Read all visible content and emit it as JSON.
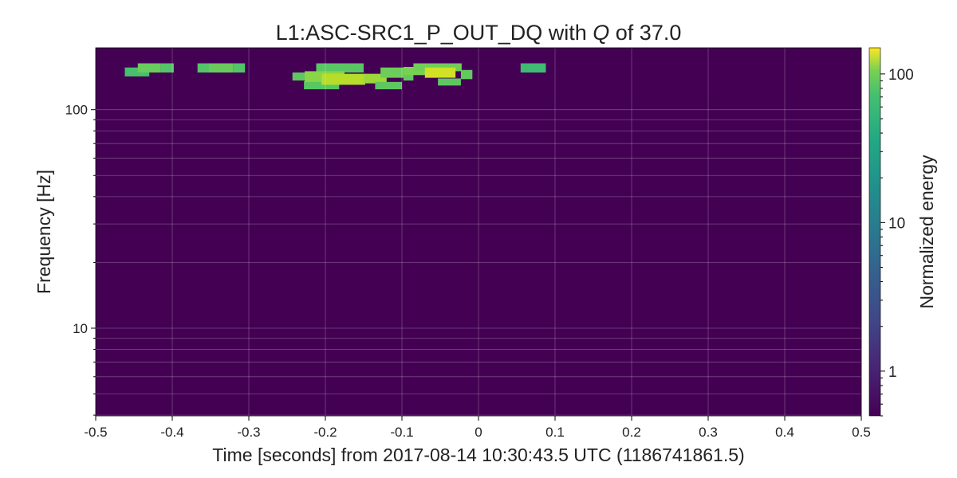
{
  "chart_data": {
    "type": "heatmap",
    "title": {
      "prefix": "L1:ASC-SRC1_P_OUT_DQ with ",
      "italic": "Q",
      "suffix": " of 37.0"
    },
    "xlabel": "Time [seconds] from 2017-08-14 10:30:43.5 UTC (1186741861.5)",
    "ylabel": "Frequency [Hz]",
    "xlim": [
      -0.5,
      0.5
    ],
    "ylim": [
      3.97,
      192
    ],
    "yscale": "log",
    "xticks": [
      -0.5,
      -0.4,
      -0.3,
      -0.2,
      -0.1,
      0,
      0.1,
      0.2,
      0.3,
      0.4,
      0.5
    ],
    "xtick_labels": [
      "-0.5",
      "-0.4",
      "-0.3",
      "-0.2",
      "-0.1",
      "0",
      "0.1",
      "0.2",
      "0.3",
      "0.4",
      "0.5"
    ],
    "yticks": [
      10,
      100
    ],
    "ytick_labels": [
      "10",
      "100"
    ],
    "grid": true,
    "colormap": "viridis",
    "background_color": "#440154",
    "colorbar": {
      "label": "Normalized energy",
      "scale": "log",
      "range": [
        0.5,
        150
      ],
      "ticks": [
        1,
        10,
        100
      ],
      "tick_labels": [
        "1",
        "10",
        "100"
      ]
    },
    "tiles": [
      {
        "x0": -0.462,
        "x1": -0.43,
        "f0": 142,
        "f1": 156,
        "value": 28
      },
      {
        "x0": -0.445,
        "x1": -0.415,
        "f0": 148,
        "f1": 163,
        "value": 40
      },
      {
        "x0": -0.415,
        "x1": -0.398,
        "f0": 148,
        "f1": 163,
        "value": 32
      },
      {
        "x0": -0.367,
        "x1": -0.345,
        "f0": 148,
        "f1": 163,
        "value": 32
      },
      {
        "x0": -0.352,
        "x1": -0.32,
        "f0": 148,
        "f1": 163,
        "value": 40
      },
      {
        "x0": -0.32,
        "x1": -0.305,
        "f0": 148,
        "f1": 163,
        "value": 32
      },
      {
        "x0": -0.243,
        "x1": -0.225,
        "f0": 136,
        "f1": 148,
        "value": 36
      },
      {
        "x0": -0.228,
        "x1": -0.182,
        "f0": 124,
        "f1": 135,
        "value": 34
      },
      {
        "x0": -0.212,
        "x1": -0.15,
        "f0": 148,
        "f1": 163,
        "value": 34
      },
      {
        "x0": -0.227,
        "x1": -0.175,
        "f0": 134,
        "f1": 150,
        "value": 55
      },
      {
        "x0": -0.205,
        "x1": -0.148,
        "f0": 130,
        "f1": 146,
        "value": 80
      },
      {
        "x0": -0.15,
        "x1": -0.12,
        "f0": 132,
        "f1": 146,
        "value": 65
      },
      {
        "x0": -0.135,
        "x1": -0.1,
        "f0": 124,
        "f1": 134,
        "value": 36
      },
      {
        "x0": -0.128,
        "x1": -0.095,
        "f0": 140,
        "f1": 156,
        "value": 42
      },
      {
        "x0": -0.098,
        "x1": -0.085,
        "f0": 136,
        "f1": 150,
        "value": 38
      },
      {
        "x0": -0.098,
        "x1": -0.068,
        "f0": 144,
        "f1": 157,
        "value": 48
      },
      {
        "x0": -0.085,
        "x1": -0.022,
        "f0": 150,
        "f1": 163,
        "value": 44
      },
      {
        "x0": -0.07,
        "x1": -0.03,
        "f0": 140,
        "f1": 156,
        "value": 100
      },
      {
        "x0": -0.053,
        "x1": -0.023,
        "f0": 129,
        "f1": 139,
        "value": 36
      },
      {
        "x0": -0.023,
        "x1": -0.008,
        "f0": 138,
        "f1": 152,
        "value": 38
      },
      {
        "x0": 0.055,
        "x1": 0.088,
        "f0": 148,
        "f1": 163,
        "value": 25
      }
    ]
  }
}
